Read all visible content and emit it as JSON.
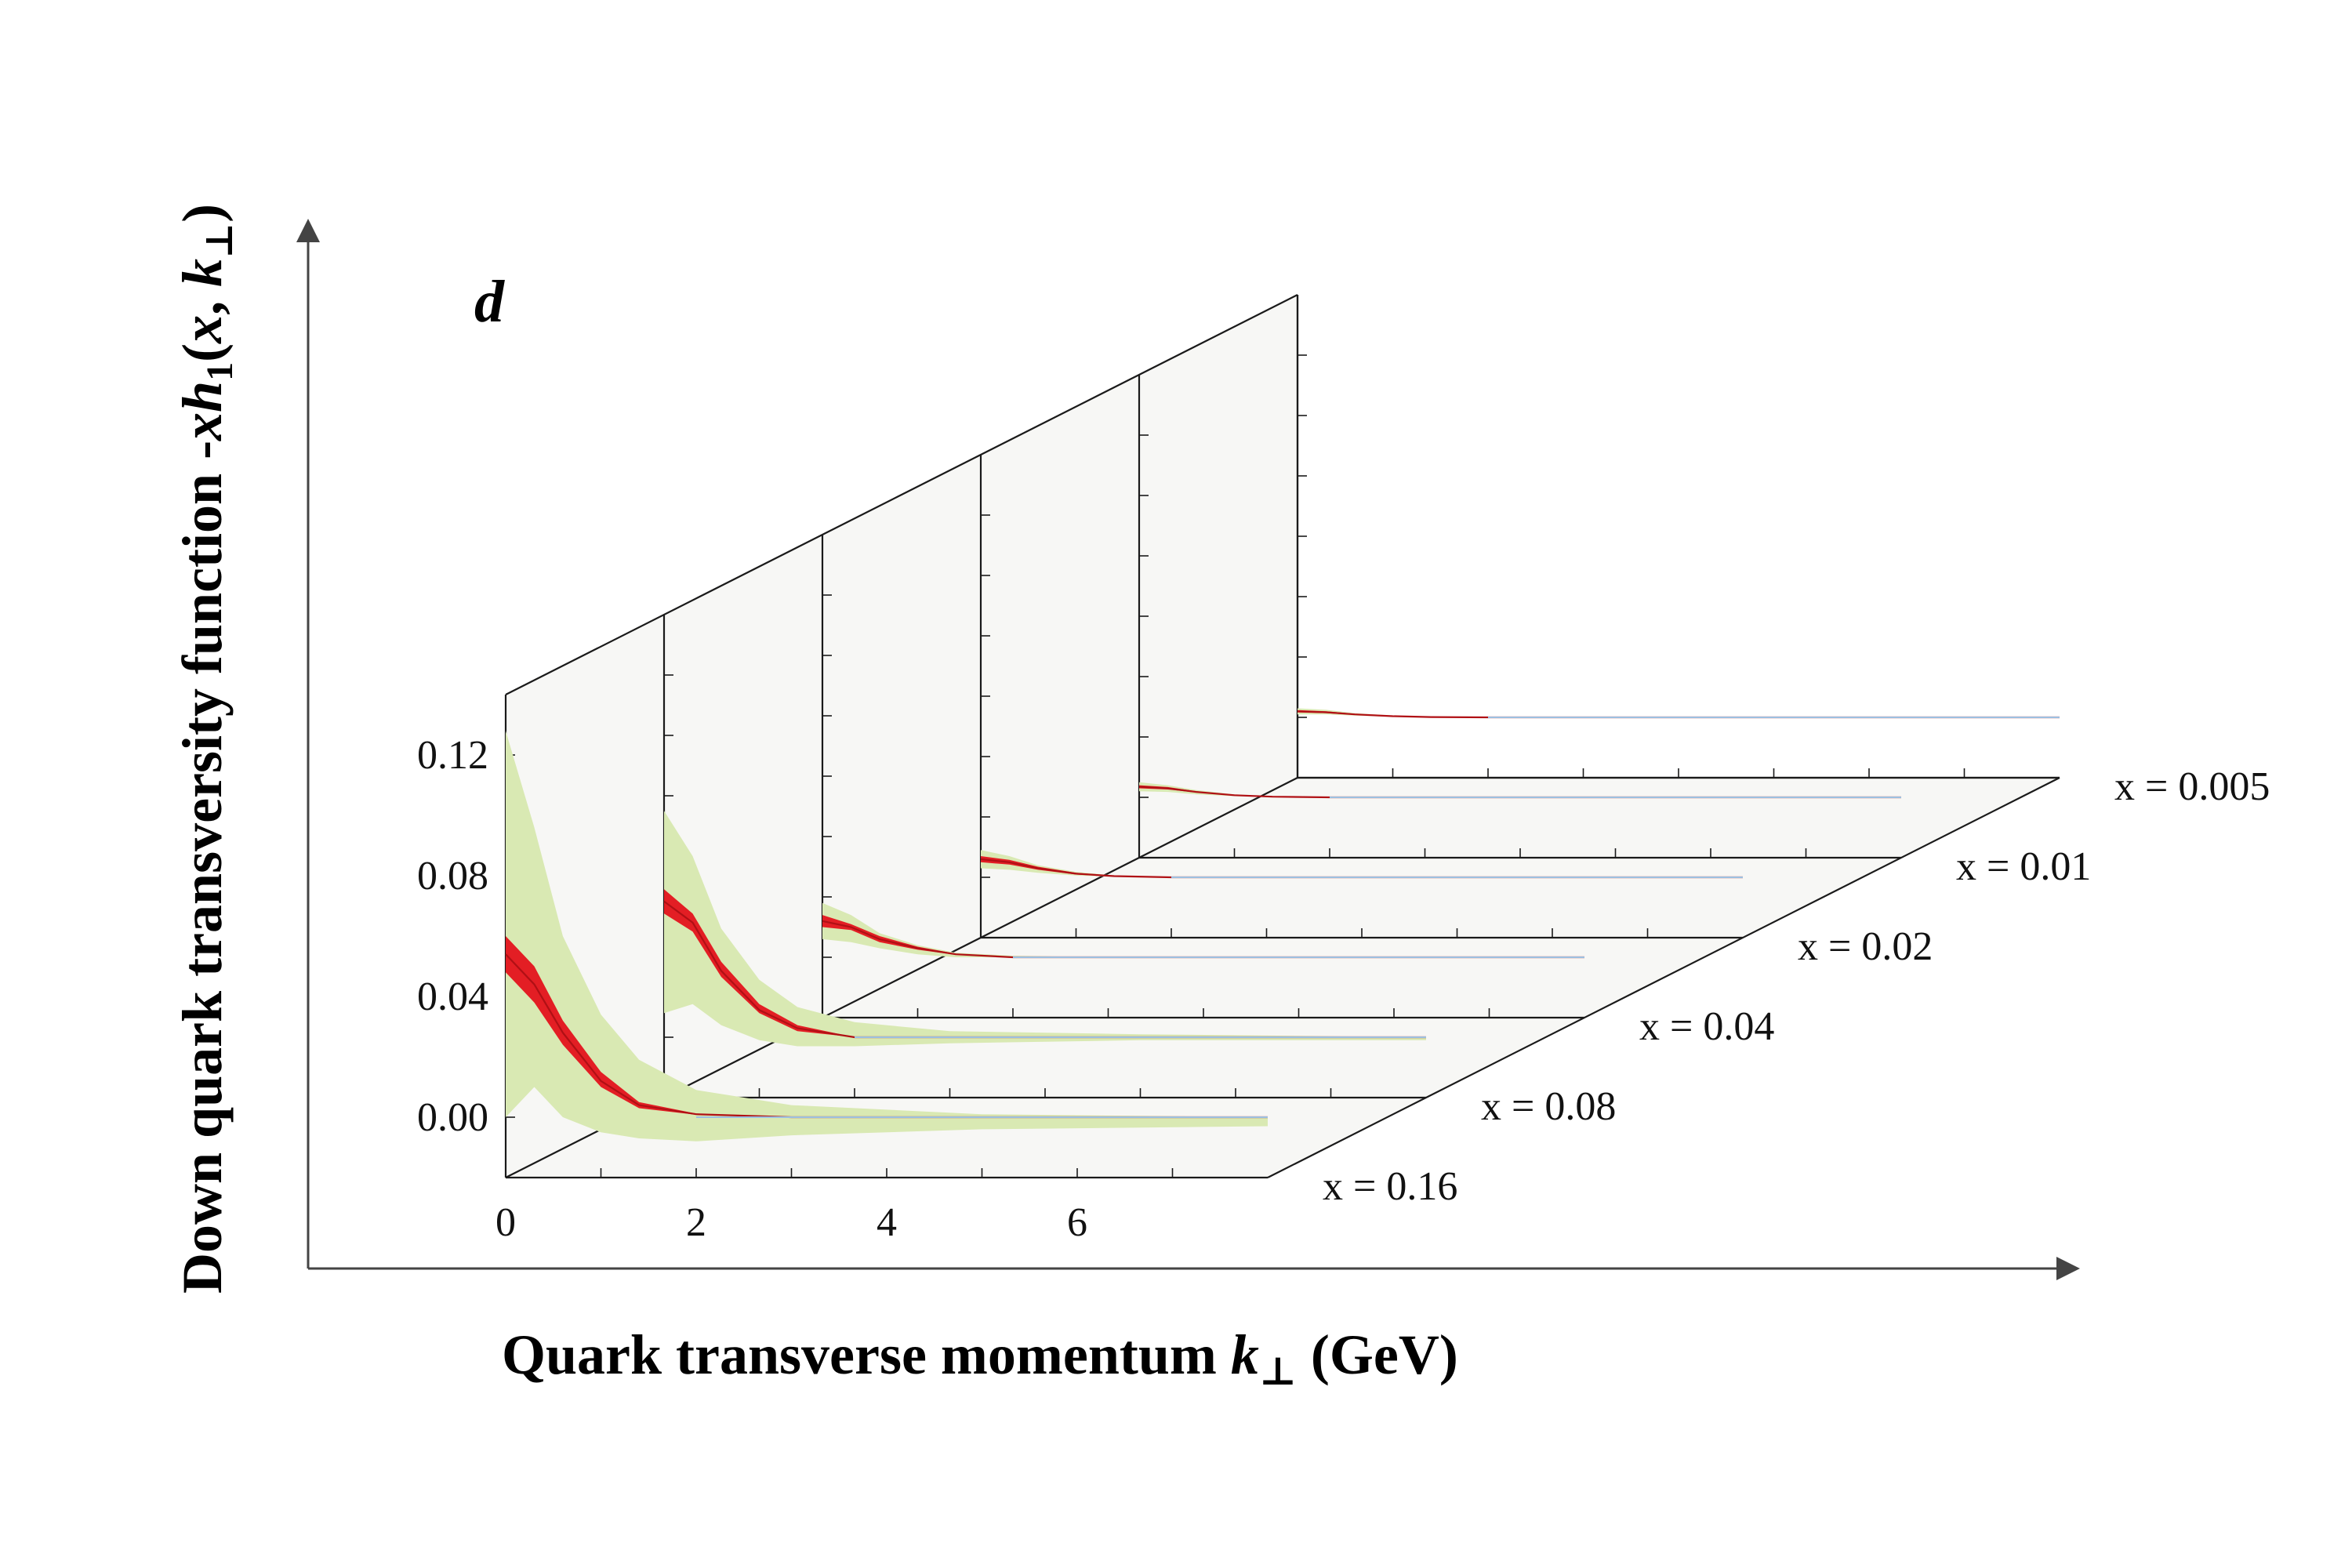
{
  "chart_data": {
    "type": "area",
    "title": "",
    "panel_letter": "d",
    "xlabel": {
      "main": "Quark transverse momentum ",
      "var": "k",
      "sub": "⊥",
      "unit": " (GeV)"
    },
    "ylabel": {
      "prefix": "Down quark transversity function -",
      "var1": "xh",
      "sub1": "1",
      "args_open": "(",
      "var2": "x",
      "comma": ", ",
      "var3": "k",
      "sub3": "⊥",
      "args_close": ")"
    },
    "x_ticks": [
      "0",
      "2",
      "4",
      "6"
    ],
    "y_ticks": [
      "0.00",
      "0.04",
      "0.08",
      "0.12"
    ],
    "xlim": [
      0,
      8
    ],
    "ylim": [
      -0.02,
      0.14
    ],
    "colors": {
      "band_outer": "#d9e9b3",
      "band_inner": "#e31e24",
      "central": "#b01015",
      "asymptote": "#9cbfe0",
      "wall": "#f7f7f5",
      "frame": "#1a1a1a"
    },
    "panels": [
      {
        "label": "x = 0.16",
        "x": [
          0,
          0.3,
          0.6,
          1.0,
          1.4,
          2.0,
          3.0,
          5.0,
          8.0
        ],
        "central": [
          0.054,
          0.044,
          0.028,
          0.012,
          0.004,
          0.001,
          0.0,
          0.0,
          0.0
        ],
        "inner_upper": [
          0.06,
          0.05,
          0.032,
          0.015,
          0.005,
          0.0012,
          0.0,
          0.0,
          0.0
        ],
        "inner_lower": [
          0.048,
          0.038,
          0.024,
          0.01,
          0.003,
          0.0008,
          0.0,
          0.0,
          0.0
        ],
        "outer_upper": [
          0.128,
          0.096,
          0.06,
          0.034,
          0.019,
          0.009,
          0.004,
          0.001,
          0.0
        ],
        "outer_lower": [
          0.0,
          0.01,
          0.0,
          -0.005,
          -0.007,
          -0.008,
          -0.006,
          -0.004,
          -0.003
        ]
      },
      {
        "label": "x = 0.08",
        "x": [
          0,
          0.3,
          0.6,
          1.0,
          1.4,
          2.0,
          3.0,
          5.0,
          8.0
        ],
        "central": [
          0.045,
          0.038,
          0.022,
          0.009,
          0.003,
          0.0,
          0.0,
          0.0,
          0.0
        ],
        "inner_upper": [
          0.049,
          0.041,
          0.025,
          0.011,
          0.004,
          0.0,
          0.0,
          0.0,
          0.0
        ],
        "inner_lower": [
          0.041,
          0.035,
          0.02,
          0.008,
          0.002,
          0.0,
          0.0,
          0.0,
          0.0
        ],
        "outer_upper": [
          0.075,
          0.06,
          0.036,
          0.019,
          0.01,
          0.005,
          0.002,
          0.001,
          0.0
        ],
        "outer_lower": [
          0.008,
          0.011,
          0.004,
          -0.001,
          -0.003,
          -0.003,
          -0.002,
          -0.001,
          -0.001
        ]
      },
      {
        "label": "x = 0.04",
        "x": [
          0,
          0.3,
          0.6,
          1.0,
          1.4,
          2.0,
          3.0,
          5.0,
          8.0
        ],
        "central": [
          0.012,
          0.01,
          0.006,
          0.003,
          0.001,
          0.0,
          0.0,
          0.0,
          0.0
        ],
        "inner_upper": [
          0.014,
          0.011,
          0.007,
          0.0035,
          0.0012,
          0.0,
          0.0,
          0.0,
          0.0
        ],
        "inner_lower": [
          0.01,
          0.009,
          0.005,
          0.0025,
          0.0008,
          0.0,
          0.0,
          0.0,
          0.0
        ],
        "outer_upper": [
          0.018,
          0.014,
          0.008,
          0.004,
          0.0015,
          0.0005,
          0.0,
          0.0,
          0.0
        ],
        "outer_lower": [
          0.006,
          0.005,
          0.003,
          0.001,
          0.0,
          0.0,
          0.0,
          0.0,
          0.0
        ]
      },
      {
        "label": "x = 0.02",
        "x": [
          0,
          0.3,
          0.6,
          1.0,
          1.4,
          2.0,
          3.0,
          5.0,
          8.0
        ],
        "central": [
          0.006,
          0.005,
          0.003,
          0.0012,
          0.0004,
          0.0,
          0.0,
          0.0,
          0.0
        ],
        "inner_upper": [
          0.007,
          0.0058,
          0.0035,
          0.0015,
          0.0005,
          0.0,
          0.0,
          0.0,
          0.0
        ],
        "inner_lower": [
          0.005,
          0.0042,
          0.0025,
          0.0009,
          0.0003,
          0.0,
          0.0,
          0.0,
          0.0
        ],
        "outer_upper": [
          0.009,
          0.007,
          0.004,
          0.0018,
          0.0006,
          0.0,
          0.0,
          0.0,
          0.0
        ],
        "outer_lower": [
          0.003,
          0.0025,
          0.0015,
          0.0006,
          0.0002,
          0.0,
          0.0,
          0.0,
          0.0
        ]
      },
      {
        "label": "x = 0.01",
        "x": [
          0,
          0.3,
          0.6,
          1.0,
          1.4,
          2.0,
          3.0,
          5.0,
          8.0
        ],
        "central": [
          0.0035,
          0.003,
          0.0018,
          0.0007,
          0.0002,
          0.0,
          0.0,
          0.0,
          0.0
        ],
        "inner_upper": [
          0.004,
          0.0034,
          0.002,
          0.0008,
          0.0003,
          0.0,
          0.0,
          0.0,
          0.0
        ],
        "inner_lower": [
          0.003,
          0.0026,
          0.0016,
          0.0006,
          0.0002,
          0.0,
          0.0,
          0.0,
          0.0
        ],
        "outer_upper": [
          0.005,
          0.004,
          0.0024,
          0.001,
          0.0003,
          0.0,
          0.0,
          0.0,
          0.0
        ],
        "outer_lower": [
          0.002,
          0.0018,
          0.001,
          0.0004,
          0.0001,
          0.0,
          0.0,
          0.0,
          0.0
        ]
      },
      {
        "label": "x = 0.005",
        "x": [
          0,
          0.3,
          0.6,
          1.0,
          1.4,
          2.0,
          3.0,
          5.0,
          8.0
        ],
        "central": [
          0.002,
          0.0017,
          0.001,
          0.0004,
          0.0001,
          0.0,
          0.0,
          0.0,
          0.0
        ],
        "inner_upper": [
          0.0024,
          0.002,
          0.0012,
          0.0005,
          0.0002,
          0.0,
          0.0,
          0.0,
          0.0
        ],
        "inner_lower": [
          0.0016,
          0.0014,
          0.0008,
          0.0003,
          0.0001,
          0.0,
          0.0,
          0.0,
          0.0
        ],
        "outer_upper": [
          0.003,
          0.0025,
          0.0014,
          0.0006,
          0.0002,
          0.0,
          0.0,
          0.0,
          0.0
        ],
        "outer_lower": [
          0.001,
          0.001,
          0.0006,
          0.0002,
          0.0,
          0.0,
          0.0,
          0.0,
          0.0
        ]
      }
    ]
  }
}
